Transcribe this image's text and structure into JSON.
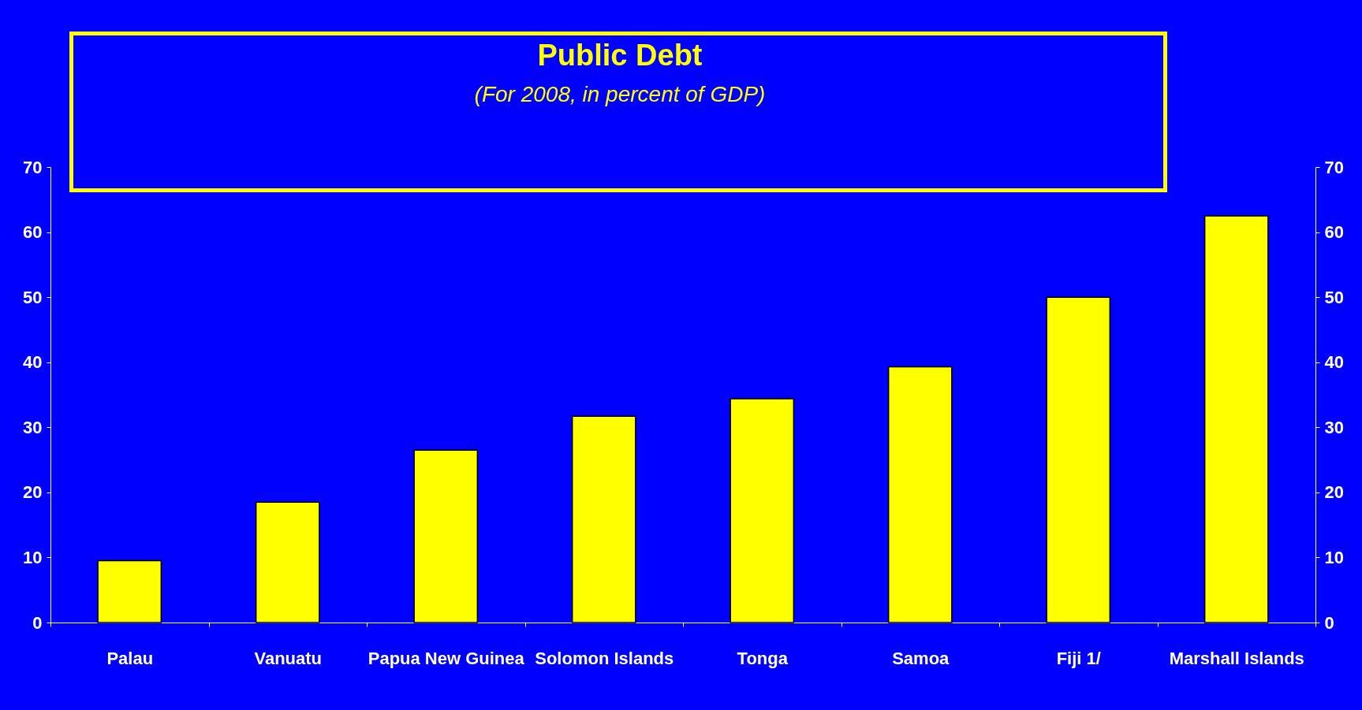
{
  "chart_data": {
    "type": "bar",
    "title": "Public Debt",
    "subtitle": "(For 2008, in percent of GDP)",
    "categories": [
      "Palau",
      "Vanuatu",
      "Papua New Guinea",
      "Solomon Islands",
      "Tonga",
      "Samoa",
      "Fiji 1/",
      "Marshall Islands"
    ],
    "values": [
      9.5,
      18.5,
      26.5,
      31.7,
      34.4,
      39.3,
      50,
      62.5
    ],
    "color": "#ffff00",
    "ylim": [
      0,
      70
    ],
    "yticks": [
      0,
      10,
      20,
      30,
      40,
      50,
      60,
      70
    ],
    "y2lim": [
      0,
      70
    ],
    "y2ticks": [
      0,
      10,
      20,
      30,
      40,
      50,
      60,
      70
    ],
    "grid": false
  }
}
